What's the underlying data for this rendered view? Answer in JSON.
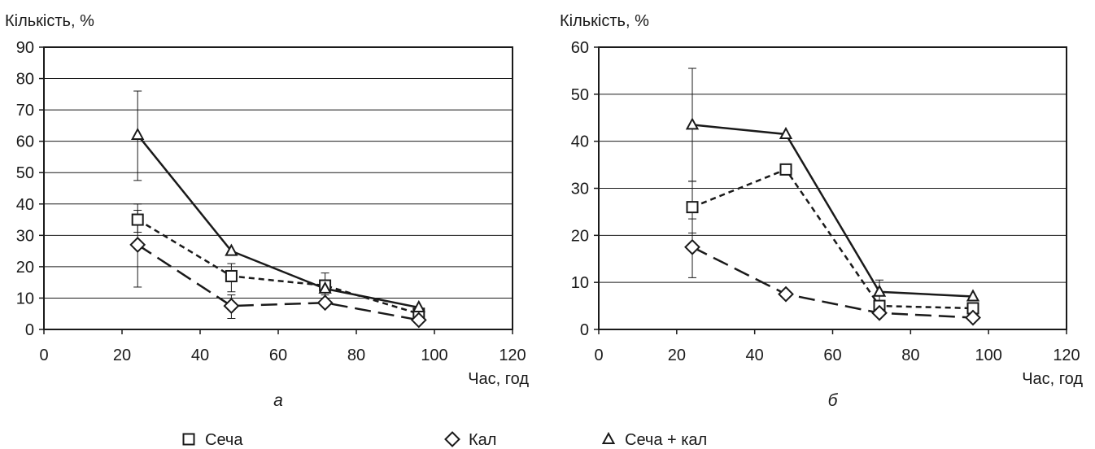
{
  "legend": [
    {
      "label": "Сеча",
      "marker": "square"
    },
    {
      "label": "Кал",
      "marker": "diamond"
    },
    {
      "label": "Сеча + кал",
      "marker": "triangle"
    }
  ],
  "chart_data": [
    {
      "type": "line",
      "panel_label": "а",
      "ylabel": "Кількість, %",
      "xlabel": "Час, год",
      "xlim": [
        0,
        120
      ],
      "ylim": [
        0,
        90
      ],
      "x_ticks": [
        0,
        20,
        40,
        60,
        80,
        100,
        120
      ],
      "y_ticks": [
        0,
        10,
        20,
        30,
        40,
        50,
        60,
        70,
        80,
        90
      ],
      "grid": "horizontal",
      "series": [
        {
          "name": "Сеча",
          "marker": "square",
          "dash": "short",
          "x": [
            24,
            48,
            72,
            96
          ],
          "y": [
            35,
            17,
            14,
            5
          ],
          "err": [
            [
              31,
              40
            ],
            [
              12,
              21
            ],
            [
              11,
              18
            ],
            null
          ]
        },
        {
          "name": "Кал",
          "marker": "diamond",
          "dash": "long",
          "x": [
            24,
            48,
            72,
            96
          ],
          "y": [
            27,
            7.5,
            8.5,
            3
          ],
          "err": [
            [
              13.5,
              38
            ],
            [
              3.5,
              11
            ],
            null,
            null
          ]
        },
        {
          "name": "Сеча + кал",
          "marker": "triangle",
          "dash": "solid",
          "x": [
            24,
            48,
            72,
            96
          ],
          "y": [
            62,
            25,
            13,
            7
          ],
          "err": [
            [
              47.5,
              76
            ],
            null,
            null,
            null
          ]
        }
      ]
    },
    {
      "type": "line",
      "panel_label": "б",
      "ylabel": "Кількість, %",
      "xlabel": "Час, год",
      "xlim": [
        0,
        120
      ],
      "ylim": [
        0,
        60
      ],
      "x_ticks": [
        0,
        20,
        40,
        60,
        80,
        100,
        120
      ],
      "y_ticks": [
        0,
        10,
        20,
        30,
        40,
        50,
        60
      ],
      "grid": "horizontal",
      "series": [
        {
          "name": "Сеча",
          "marker": "square",
          "dash": "short",
          "x": [
            24,
            48,
            72,
            96
          ],
          "y": [
            26,
            34,
            5,
            4.5
          ],
          "err": [
            [
              20.5,
              31.5
            ],
            null,
            [
              3.5,
              10.5
            ],
            null
          ]
        },
        {
          "name": "Кал",
          "marker": "diamond",
          "dash": "long",
          "x": [
            24,
            48,
            72,
            96
          ],
          "y": [
            17.5,
            7.5,
            3.5,
            2.5
          ],
          "err": [
            [
              11,
              23.5
            ],
            null,
            null,
            null
          ]
        },
        {
          "name": "Сеча + кал",
          "marker": "triangle",
          "dash": "solid",
          "x": [
            24,
            48,
            72,
            96
          ],
          "y": [
            43.5,
            41.5,
            8,
            7
          ],
          "err": [
            [
              31.5,
              55.5
            ],
            null,
            null,
            null
          ]
        }
      ]
    }
  ]
}
